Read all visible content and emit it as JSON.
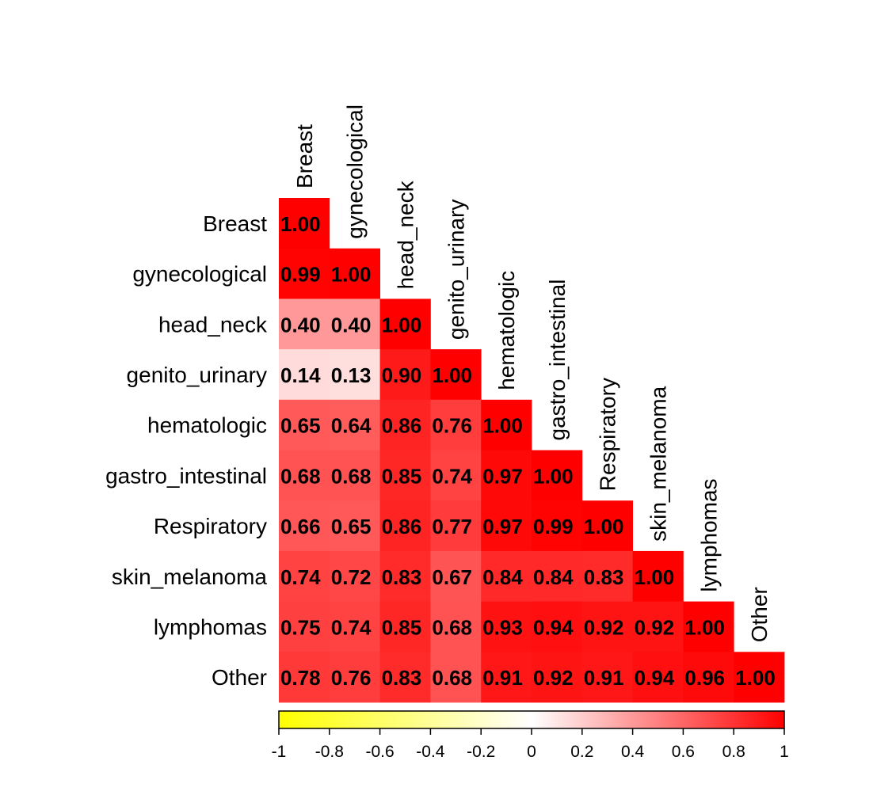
{
  "chart_data": {
    "type": "heatmap",
    "variables": [
      "Breast",
      "gynecological",
      "head_neck",
      "genito_urinary",
      "hematologic",
      "gastro_intestinal",
      "Respiratory",
      "skin_melanoma",
      "lymphomas",
      "Other"
    ],
    "values": [
      [
        1.0
      ],
      [
        0.99,
        1.0
      ],
      [
        0.4,
        0.4,
        1.0
      ],
      [
        0.14,
        0.13,
        0.9,
        1.0
      ],
      [
        0.65,
        0.64,
        0.86,
        0.76,
        1.0
      ],
      [
        0.68,
        0.68,
        0.85,
        0.74,
        0.97,
        1.0
      ],
      [
        0.66,
        0.65,
        0.86,
        0.77,
        0.97,
        0.99,
        1.0
      ],
      [
        0.74,
        0.72,
        0.83,
        0.67,
        0.84,
        0.84,
        0.83,
        1.0
      ],
      [
        0.75,
        0.74,
        0.85,
        0.68,
        0.93,
        0.94,
        0.92,
        0.92,
        1.0
      ],
      [
        0.78,
        0.76,
        0.83,
        0.68,
        0.91,
        0.92,
        0.91,
        0.94,
        0.96,
        1.0
      ]
    ],
    "value_labels": [
      [
        "1.00"
      ],
      [
        "0.99",
        "1.00"
      ],
      [
        "0.40",
        "0.40",
        "1.00"
      ],
      [
        "0.14",
        "0.13",
        "0.90",
        "1.00"
      ],
      [
        "0.65",
        "0.64",
        "0.86",
        "0.76",
        "1.00"
      ],
      [
        "0.68",
        "0.68",
        "0.85",
        "0.74",
        "0.97",
        "1.00"
      ],
      [
        "0.66",
        "0.65",
        "0.86",
        "0.77",
        "0.97",
        "0.99",
        "1.00"
      ],
      [
        "0.74",
        "0.72",
        "0.83",
        "0.67",
        "0.84",
        "0.84",
        "0.83",
        "1.00"
      ],
      [
        "0.75",
        "0.74",
        "0.85",
        "0.68",
        "0.93",
        "0.94",
        "0.92",
        "0.92",
        "1.00"
      ],
      [
        "0.78",
        "0.76",
        "0.83",
        "0.68",
        "0.91",
        "0.92",
        "0.91",
        "0.94",
        "0.96",
        "1.00"
      ]
    ],
    "layout": "lower-triangle",
    "color_scale": {
      "range": [
        -1,
        1
      ],
      "colors": [
        "#FFFF00",
        "#FFFFFF",
        "#FF0000"
      ],
      "ticks": [
        "-1",
        "-0.8",
        "-0.6",
        "-0.4",
        "-0.2",
        "0",
        "0.2",
        "0.4",
        "0.6",
        "0.8",
        "1"
      ]
    },
    "legend_placement": "bottom"
  }
}
